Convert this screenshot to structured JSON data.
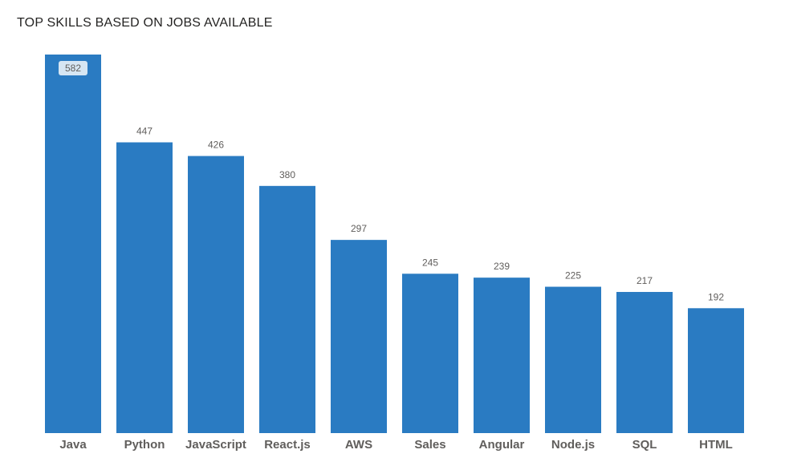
{
  "chart_data": {
    "type": "bar",
    "title": "TOP SKILLS BASED ON JOBS AVAILABLE",
    "categories": [
      "Java",
      "Python",
      "JavaScript",
      "React.js",
      "AWS",
      "Sales",
      "Angular",
      "Node.js",
      "SQL",
      "HTML"
    ],
    "values": [
      582,
      447,
      426,
      380,
      297,
      245,
      239,
      225,
      217,
      192
    ],
    "xlabel": "",
    "ylabel": "",
    "ylim": [
      0,
      582
    ],
    "grid": false,
    "bar_color": "#2a7bc2",
    "highlighted_label_index": 0
  }
}
